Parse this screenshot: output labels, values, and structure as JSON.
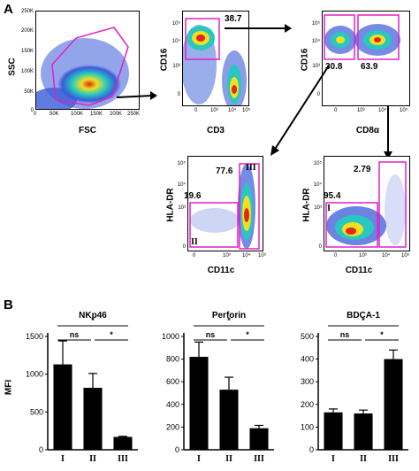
{
  "panel_a": {
    "letter": "A",
    "plots": [
      {
        "ylabel": "SSC",
        "xlabel": "FSC",
        "yticks": [
          "250K",
          "200K",
          "150K",
          "100K",
          "50K",
          "0"
        ],
        "xticks": [
          "0",
          "50K",
          "100K",
          "150K",
          "200K",
          "250K"
        ]
      },
      {
        "ylabel": "CD16",
        "xlabel": "CD3",
        "pct": "38.7",
        "yticks": [
          "10⁵",
          "10⁴",
          "10³",
          "0"
        ],
        "xticks": [
          "0",
          "10³",
          "10⁴",
          "10⁵"
        ]
      },
      {
        "ylabel": "CD16",
        "xlabel": "CD8α",
        "pcts": [
          "30.8",
          "63.9"
        ],
        "yticks": [
          "10⁵",
          "10⁴",
          "10³",
          "0"
        ],
        "xticks": [
          "0",
          "10³",
          "10⁴",
          "10⁵"
        ]
      },
      {
        "ylabel": "HLA-DR",
        "xlabel": "CD11c",
        "pcts": [
          "19.6",
          "77.6"
        ],
        "gates": [
          "III",
          "II"
        ],
        "yticks": [
          "10⁵",
          "10⁴",
          "10³",
          "0"
        ],
        "xticks": [
          "0",
          "10³",
          "10⁴",
          "10⁵"
        ]
      },
      {
        "ylabel": "HLA-DR",
        "xlabel": "CD11c",
        "pcts": [
          "2.79",
          "95.4"
        ],
        "gates": [
          "I"
        ],
        "yticks": [
          "10⁵",
          "10⁴",
          "10³",
          "0"
        ],
        "xticks": [
          "0",
          "10³",
          "10⁴",
          "10⁵"
        ]
      }
    ]
  },
  "panel_b": {
    "letter": "B",
    "ylabel": "MFI"
  },
  "chart_data": [
    {
      "type": "bar",
      "title": "NKp46",
      "categories": [
        "I",
        "II",
        "III"
      ],
      "values": [
        1130,
        820,
        170
      ],
      "errors": [
        310,
        190,
        8
      ],
      "ylim": [
        0,
        1500
      ],
      "yticks": [
        "1500",
        "1000",
        "500",
        "0"
      ],
      "ylabel": "MFI",
      "annotations": [
        {
          "from": "I",
          "to": "III",
          "label": "*"
        },
        {
          "from": "I",
          "to": "II",
          "label": "ns"
        },
        {
          "from": "II",
          "to": "III",
          "label": "*"
        }
      ]
    },
    {
      "type": "bar",
      "title": "Perforin",
      "categories": [
        "I",
        "II",
        "III"
      ],
      "values": [
        820,
        530,
        190
      ],
      "errors": [
        130,
        110,
        25
      ],
      "ylim": [
        0,
        1000
      ],
      "yticks": [
        "1000",
        "800",
        "600",
        "400",
        "200",
        "0"
      ],
      "annotations": [
        {
          "from": "I",
          "to": "III",
          "label": "*"
        },
        {
          "from": "I",
          "to": "II",
          "label": "ns"
        },
        {
          "from": "II",
          "to": "III",
          "label": "*"
        }
      ]
    },
    {
      "type": "bar",
      "title": "BDCA-1",
      "categories": [
        "I",
        "II",
        "III"
      ],
      "values": [
        165,
        160,
        400
      ],
      "errors": [
        15,
        15,
        40
      ],
      "ylim": [
        0,
        500
      ],
      "yticks": [
        "500",
        "400",
        "300",
        "200",
        "100",
        "0"
      ],
      "annotations": [
        {
          "from": "I",
          "to": "III",
          "label": "*"
        },
        {
          "from": "I",
          "to": "II",
          "label": "ns"
        },
        {
          "from": "II",
          "to": "III",
          "label": "*"
        }
      ]
    }
  ],
  "colors": {
    "gate": "#e020c8",
    "bar": "#000000",
    "density_low": "#3a5bd8",
    "density_mid": "#28c8c0",
    "density_high": "#f0e020",
    "density_peak": "#e02818"
  }
}
